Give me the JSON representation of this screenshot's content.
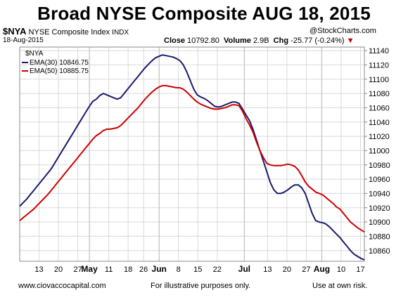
{
  "title": "Broad NYSE Composite  AUG 18, 2015",
  "header": {
    "symbol": "$NYA",
    "name": "NYSE Composite Index",
    "exchange": "INDX",
    "date": "18-Aug-2015",
    "source": "@StockCharts.com",
    "close_label": "Close",
    "close_value": "10792.80",
    "volume_label": "Volume",
    "volume_value": "2.9B",
    "chg_label": "Chg",
    "chg_value": "-25.77 (-0.24%)"
  },
  "footer": {
    "left": "www.ciovaccocapital.com",
    "center": "For illustrative purposes only.",
    "right": "Use at own risk."
  },
  "colors": {
    "ema30": "#1a1a6e",
    "ema50": "#cc0000",
    "grid": "#d9d9d9",
    "plot_border": "#888888"
  },
  "chart_data": {
    "type": "line",
    "legend_title": "$NYA",
    "legend_position": "top-left",
    "grid": true,
    "y_axis_side": "right",
    "ylim": [
      10845,
      11145
    ],
    "y_ticks": [
      10860,
      10880,
      10900,
      10920,
      10940,
      10960,
      10980,
      11000,
      11020,
      11040,
      11060,
      11080,
      11100,
      11120,
      11140
    ],
    "x_labels": [
      {
        "t": 5,
        "label": "13",
        "bold": false
      },
      {
        "t": 10,
        "label": "20",
        "bold": false
      },
      {
        "t": 15,
        "label": "27",
        "bold": false
      },
      {
        "t": 18,
        "label": "May",
        "bold": true
      },
      {
        "t": 23,
        "label": "11",
        "bold": false
      },
      {
        "t": 28,
        "label": "18",
        "bold": false
      },
      {
        "t": 32,
        "label": "26",
        "bold": false
      },
      {
        "t": 36,
        "label": "Jun",
        "bold": true
      },
      {
        "t": 41,
        "label": "8",
        "bold": false
      },
      {
        "t": 46,
        "label": "15",
        "bold": false
      },
      {
        "t": 51,
        "label": "22",
        "bold": false
      },
      {
        "t": 58,
        "label": "Jul",
        "bold": true
      },
      {
        "t": 64,
        "label": "13",
        "bold": false
      },
      {
        "t": 69,
        "label": "20",
        "bold": false
      },
      {
        "t": 74,
        "label": "27",
        "bold": false
      },
      {
        "t": 78,
        "label": "Aug",
        "bold": true
      },
      {
        "t": 83,
        "label": "10",
        "bold": false
      },
      {
        "t": 88,
        "label": "17",
        "bold": false
      }
    ],
    "month_lines": [
      18,
      36,
      58,
      78
    ],
    "t_range": [
      0,
      89
    ],
    "series": [
      {
        "name": "EMA(30) 10846.75",
        "color": "#1a1a6e",
        "values": [
          10922,
          10927,
          10932,
          10938,
          10944,
          10950,
          10956,
          10962,
          10968,
          10974,
          10982,
          10990,
          10998,
          11006,
          11014,
          11022,
          11030,
          11038,
          11046,
          11054,
          11062,
          11069,
          11072,
          11077,
          11080,
          11078,
          11076,
          11074,
          11072,
          11074,
          11080,
          11086,
          11092,
          11098,
          11104,
          11110,
          11116,
          11121,
          11126,
          11130,
          11132,
          11134,
          11133,
          11132,
          11131,
          11129,
          11126,
          11120,
          11110,
          11098,
          11086,
          11078,
          11075,
          11073,
          11070,
          11066,
          11062,
          11061,
          11062,
          11064,
          11066,
          11068,
          11068,
          11066,
          11058,
          11050,
          11042,
          11030,
          11015,
          11000,
          10985,
          10970,
          10955,
          10945,
          10940,
          10940,
          10942,
          10945,
          10949,
          10952,
          10952,
          10948,
          10940,
          10926,
          10912,
          10902,
          10900,
          10899,
          10897,
          10893,
          10888,
          10883,
          10878,
          10872,
          10866,
          10860,
          10855,
          10852,
          10849,
          10847
        ]
      },
      {
        "name": "EMA(50) 10885.75",
        "color": "#cc0000",
        "values": [
          10902,
          10906,
          10910,
          10914,
          10918,
          10923,
          10928,
          10933,
          10938,
          10944,
          10950,
          10956,
          10962,
          10968,
          10974,
          10980,
          10986,
          10992,
          10998,
          11004,
          11010,
          11016,
          11021,
          11024,
          11028,
          11030,
          11030,
          11031,
          11032,
          11035,
          11040,
          11045,
          11050,
          11055,
          11060,
          11066,
          11072,
          11077,
          11082,
          11086,
          11089,
          11091,
          11091,
          11090,
          11089,
          11088,
          11088,
          11086,
          11082,
          11077,
          11072,
          11068,
          11065,
          11063,
          11061,
          11059,
          11058,
          11058,
          11059,
          11060,
          11062,
          11064,
          11064,
          11063,
          11055,
          11045,
          11036,
          11026,
          11012,
          11000,
          10990,
          10982,
          10980,
          10979,
          10979,
          10979,
          10980,
          10981,
          10980,
          10978,
          10973,
          10965,
          10956,
          10950,
          10946,
          10942,
          10940,
          10938,
          10934,
          10930,
          10926,
          10921,
          10918,
          10912,
          10906,
          10900,
          10896,
          10892,
          10889,
          10886
        ]
      }
    ]
  }
}
